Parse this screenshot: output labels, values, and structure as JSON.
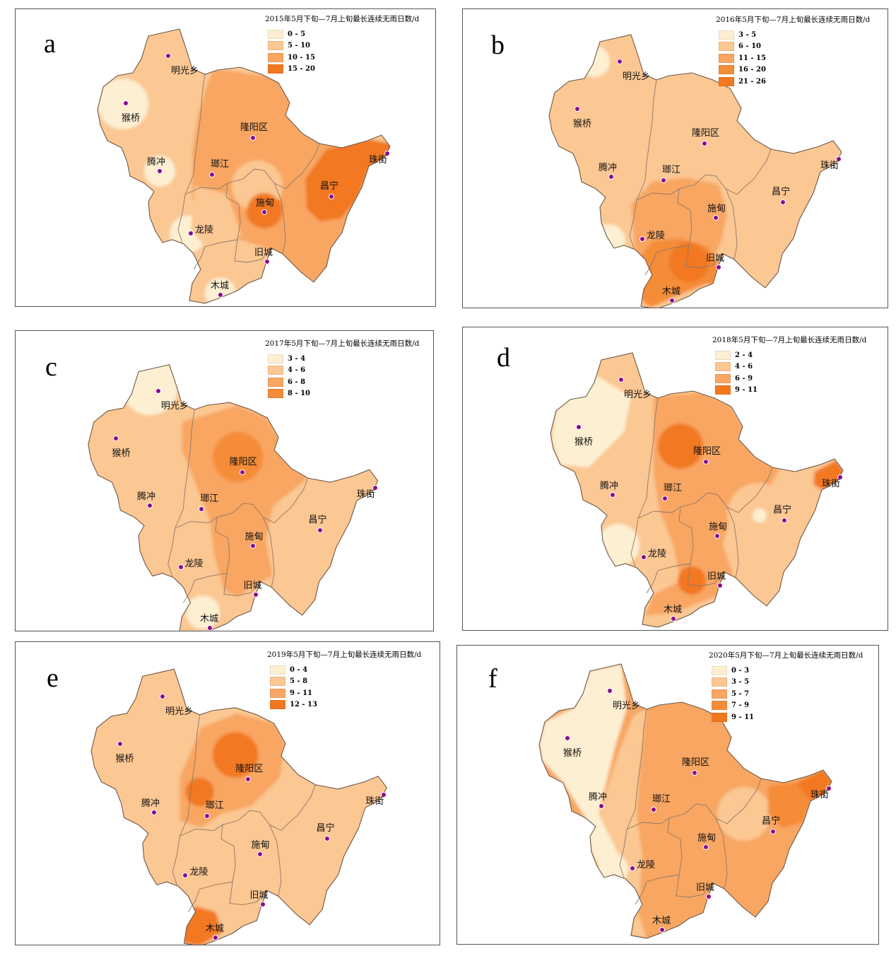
{
  "colors": {
    "classes": [
      "#fdefd2",
      "#fbc793",
      "#f8a662",
      "#f58c38",
      "#f27820"
    ],
    "district_border": "#8f7866",
    "town_dot": "#8a0a8e"
  },
  "panels": [
    {
      "id": "a",
      "letter": "a",
      "legend_title": "2015年5月下旬—7月上旬最长连续无雨日数/d",
      "legend": [
        "0 - 5",
        "5 - 10",
        "10 - 15",
        "15 - 20"
      ],
      "legend_colors": [
        0,
        1,
        2,
        4
      ],
      "towns": [
        "明光乡",
        "猴桥",
        "腾冲",
        "龙陵",
        "木城",
        "隆阳区",
        "瑯江",
        "施甸",
        "旧城",
        "昌宁",
        "珠街"
      ]
    },
    {
      "id": "b",
      "letter": "b",
      "legend_title": "2016年5月下旬—7月上旬最长连续无雨日数/d",
      "legend": [
        "3 - 5",
        "6 - 10",
        "11 - 15",
        "16 - 20",
        "21 - 26"
      ],
      "legend_colors": [
        0,
        1,
        2,
        3,
        4
      ],
      "towns": [
        "明光乡",
        "猴桥",
        "腾冲",
        "龙陵",
        "木城",
        "隆阳区",
        "瑯江",
        "施甸",
        "旧城",
        "昌宁",
        "珠街"
      ]
    },
    {
      "id": "c",
      "letter": "c",
      "legend_title": "2017年5月下旬—7月上旬最长连续无雨日数/d",
      "legend": [
        "3 - 4",
        "4 - 6",
        "6 - 8",
        "8 - 10"
      ],
      "legend_colors": [
        0,
        1,
        2,
        3
      ],
      "towns": [
        "明光乡",
        "猴桥",
        "腾冲",
        "龙陵",
        "木城",
        "隆阳区",
        "瑯江",
        "施甸",
        "旧城",
        "昌宁",
        "珠街"
      ]
    },
    {
      "id": "d",
      "letter": "d",
      "legend_title": "2018年5月下旬—7月上旬最长连续无雨日数/d",
      "legend": [
        "2 - 4",
        "4 - 6",
        "6 - 9",
        "9 - 11"
      ],
      "legend_colors": [
        0,
        1,
        2,
        4
      ],
      "towns": [
        "明光乡",
        "猴桥",
        "腾冲",
        "龙陵",
        "木城",
        "隆阳区",
        "瑯江",
        "施甸",
        "旧城",
        "昌宁",
        "珠街"
      ]
    },
    {
      "id": "e",
      "letter": "e",
      "legend_title": "2019年5月下旬—7月上旬最长连续无雨日数/d",
      "legend": [
        "0 - 4",
        "5 - 8",
        "9 - 11",
        "12 - 13"
      ],
      "legend_colors": [
        0,
        1,
        2,
        4
      ],
      "towns": [
        "明光乡",
        "猴桥",
        "腾冲",
        "龙陵",
        "木城",
        "隆阳区",
        "瑯江",
        "施甸",
        "旧城",
        "昌宁",
        "珠街"
      ]
    },
    {
      "id": "f",
      "letter": "f",
      "legend_title": "2020年5月下旬—7月上旬最长连续无雨日数/d",
      "legend": [
        "0 - 3",
        "3 - 5",
        "5 - 7",
        "7 - 9",
        "9 - 11"
      ],
      "legend_colors": [
        0,
        1,
        2,
        3,
        4
      ],
      "towns": [
        "明光乡",
        "猴桥",
        "腾冲",
        "龙陵",
        "木城",
        "隆阳区",
        "瑯江",
        "施甸",
        "旧城",
        "昌宁",
        "珠街"
      ]
    }
  ]
}
